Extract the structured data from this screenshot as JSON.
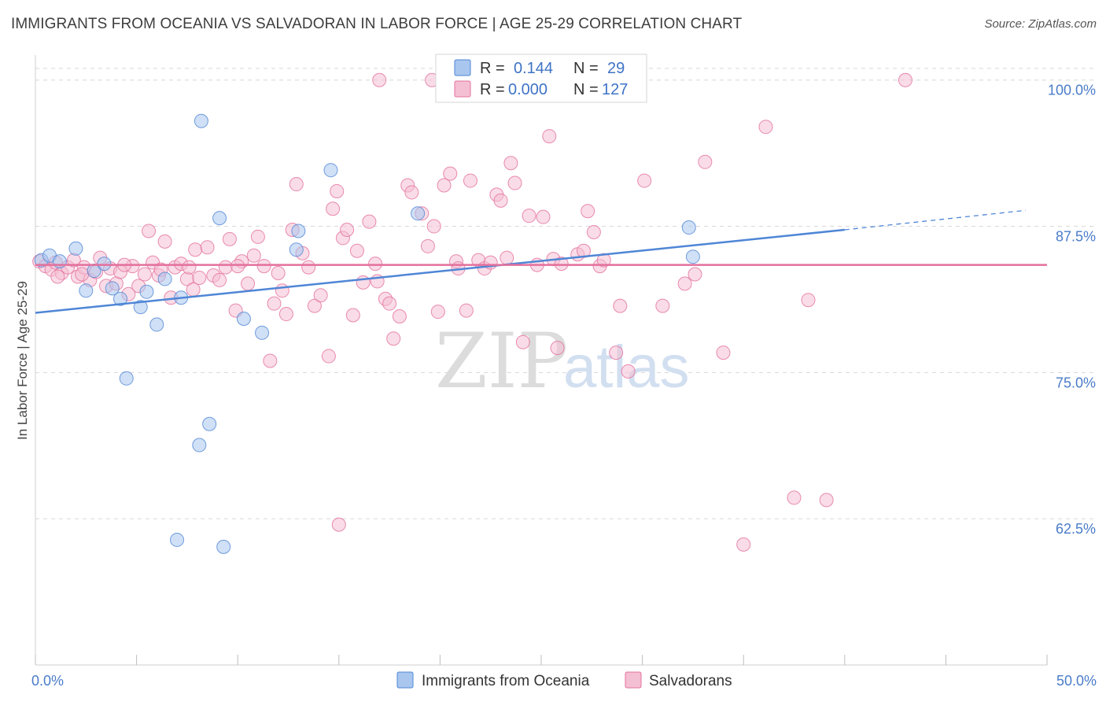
{
  "header": {
    "title": "IMMIGRANTS FROM OCEANIA VS SALVADORAN IN LABOR FORCE | AGE 25-29 CORRELATION CHART",
    "source": "Source: ZipAtlas.com"
  },
  "watermark": {
    "zip": "ZIP",
    "atlas": "atlas"
  },
  "colors": {
    "blue": "#4f86d6",
    "blue_fill": "#a9c6ee",
    "pink": "#e3709c",
    "pink_fill": "#f4bfd3",
    "tick_text": "#4a7cc9",
    "grid": "#d8d8d8"
  },
  "stats": {
    "blue": {
      "r_label": "R =",
      "r_value": "0.144",
      "n_label": "N =",
      "n_value": "29"
    },
    "pink": {
      "r_label": "R =",
      "r_value": "0.000",
      "n_label": "N =",
      "n_value": "127"
    }
  },
  "chart_data": {
    "type": "scatter",
    "xlabel": "",
    "ylabel": "In Labor Force | Age 25-29",
    "xlim": [
      0,
      50
    ],
    "ylim": [
      50,
      102
    ],
    "x_tick_labels": [
      {
        "value": 0,
        "label": "0.0%"
      },
      {
        "value": 50,
        "label": "50.0%"
      }
    ],
    "y_tick_labels": [
      {
        "value": 62.5,
        "label": "62.5%"
      },
      {
        "value": 75,
        "label": "75.0%"
      },
      {
        "value": 87.5,
        "label": "87.5%"
      },
      {
        "value": 100,
        "label": "100.0%"
      }
    ],
    "grid": "horizontal dashed",
    "legend": "bottom-center",
    "series": [
      {
        "name": "Immigrants from Oceania",
        "color": "#4f86d6",
        "trend": {
          "x": [
            0,
            40,
            50
          ],
          "y": [
            80.1,
            87.2,
            89.0
          ],
          "solid_until": 40
        },
        "points": [
          [
            0.3,
            84.6
          ],
          [
            0.7,
            85.0
          ],
          [
            1.2,
            84.5
          ],
          [
            2.0,
            85.6
          ],
          [
            2.5,
            82.0
          ],
          [
            2.9,
            83.7
          ],
          [
            3.4,
            84.3
          ],
          [
            3.8,
            82.2
          ],
          [
            4.2,
            81.3
          ],
          [
            4.5,
            74.5
          ],
          [
            5.2,
            80.6
          ],
          [
            5.5,
            81.9
          ],
          [
            6.0,
            79.1
          ],
          [
            6.4,
            83.0
          ],
          [
            7.0,
            60.7
          ],
          [
            7.2,
            81.4
          ],
          [
            8.1,
            68.8
          ],
          [
            8.2,
            96.5
          ],
          [
            8.6,
            70.6
          ],
          [
            9.1,
            88.2
          ],
          [
            9.3,
            60.1
          ],
          [
            10.3,
            79.6
          ],
          [
            11.2,
            78.4
          ],
          [
            12.9,
            85.5
          ],
          [
            13.0,
            87.1
          ],
          [
            14.6,
            92.3
          ],
          [
            18.9,
            88.6
          ],
          [
            32.5,
            84.9
          ],
          [
            32.3,
            87.4
          ]
        ]
      },
      {
        "name": "Salvadorans",
        "color": "#e3709c",
        "trend": {
          "x": [
            0,
            50
          ],
          "y": [
            84.2,
            84.2
          ],
          "solid_until": 50
        },
        "points": [
          [
            0.2,
            84.5
          ],
          [
            0.5,
            84.1
          ],
          [
            0.8,
            83.8
          ],
          [
            1.0,
            84.4
          ],
          [
            1.3,
            83.5
          ],
          [
            1.6,
            84.0
          ],
          [
            1.9,
            84.6
          ],
          [
            2.1,
            83.2
          ],
          [
            2.4,
            84.0
          ],
          [
            2.7,
            82.9
          ],
          [
            3.0,
            83.6
          ],
          [
            3.2,
            84.8
          ],
          [
            3.5,
            82.4
          ],
          [
            3.7,
            83.9
          ],
          [
            4.0,
            82.6
          ],
          [
            4.2,
            83.6
          ],
          [
            4.6,
            81.7
          ],
          [
            4.8,
            84.1
          ],
          [
            5.1,
            82.4
          ],
          [
            5.4,
            83.4
          ],
          [
            5.6,
            87.1
          ],
          [
            5.8,
            84.4
          ],
          [
            6.1,
            83.3
          ],
          [
            6.4,
            86.2
          ],
          [
            6.7,
            81.4
          ],
          [
            6.9,
            84.0
          ],
          [
            7.2,
            84.3
          ],
          [
            7.5,
            83.0
          ],
          [
            7.8,
            82.1
          ],
          [
            7.9,
            85.5
          ],
          [
            8.1,
            83.1
          ],
          [
            8.5,
            85.7
          ],
          [
            8.8,
            83.3
          ],
          [
            9.1,
            82.9
          ],
          [
            9.6,
            86.4
          ],
          [
            9.9,
            80.3
          ],
          [
            10.2,
            84.5
          ],
          [
            10.5,
            82.6
          ],
          [
            10.8,
            85.0
          ],
          [
            11.0,
            86.6
          ],
          [
            11.3,
            84.1
          ],
          [
            11.6,
            76.0
          ],
          [
            11.8,
            80.9
          ],
          [
            12.2,
            82.0
          ],
          [
            12.4,
            80.0
          ],
          [
            12.7,
            87.2
          ],
          [
            12.9,
            91.1
          ],
          [
            13.2,
            85.2
          ],
          [
            13.5,
            84.0
          ],
          [
            13.8,
            80.7
          ],
          [
            14.1,
            81.6
          ],
          [
            14.5,
            76.4
          ],
          [
            14.7,
            89.0
          ],
          [
            14.9,
            90.5
          ],
          [
            15.2,
            86.5
          ],
          [
            15.4,
            87.2
          ],
          [
            15.7,
            79.9
          ],
          [
            15.9,
            85.4
          ],
          [
            16.2,
            82.7
          ],
          [
            16.5,
            87.9
          ],
          [
            16.9,
            82.8
          ],
          [
            17.3,
            81.3
          ],
          [
            17.5,
            80.9
          ],
          [
            17.7,
            77.9
          ],
          [
            18.0,
            79.8
          ],
          [
            18.4,
            91.0
          ],
          [
            18.6,
            90.4
          ],
          [
            19.1,
            88.6
          ],
          [
            19.4,
            85.8
          ],
          [
            19.7,
            87.5
          ],
          [
            19.9,
            80.2
          ],
          [
            20.2,
            91.0
          ],
          [
            20.5,
            92.0
          ],
          [
            20.8,
            84.5
          ],
          [
            21.3,
            80.3
          ],
          [
            21.5,
            91.4
          ],
          [
            21.9,
            84.6
          ],
          [
            22.2,
            83.9
          ],
          [
            22.5,
            84.4
          ],
          [
            22.8,
            90.2
          ],
          [
            23.0,
            89.7
          ],
          [
            23.5,
            92.9
          ],
          [
            23.7,
            91.2
          ],
          [
            23.3,
            84.8
          ],
          [
            24.1,
            77.6
          ],
          [
            24.4,
            88.4
          ],
          [
            24.8,
            84.2
          ],
          [
            25.1,
            88.3
          ],
          [
            25.4,
            95.2
          ],
          [
            25.6,
            84.7
          ],
          [
            25.8,
            77.1
          ],
          [
            26.8,
            85.1
          ],
          [
            27.1,
            85.4
          ],
          [
            27.3,
            88.8
          ],
          [
            27.6,
            87.0
          ],
          [
            27.9,
            84.1
          ],
          [
            28.1,
            84.6
          ],
          [
            28.7,
            76.7
          ],
          [
            28.9,
            80.7
          ],
          [
            29.3,
            75.1
          ],
          [
            30.1,
            91.4
          ],
          [
            31.0,
            80.7
          ],
          [
            32.1,
            82.6
          ],
          [
            32.6,
            83.4
          ],
          [
            33.1,
            93.0
          ],
          [
            34.0,
            76.7
          ],
          [
            35.0,
            60.3
          ],
          [
            36.1,
            96.0
          ],
          [
            37.5,
            64.3
          ],
          [
            38.2,
            81.2
          ],
          [
            39.1,
            64.1
          ],
          [
            15.0,
            62.0
          ],
          [
            17.0,
            100.0
          ],
          [
            19.6,
            100.0
          ],
          [
            23.2,
            100.0
          ],
          [
            43.0,
            100.0
          ],
          [
            1.1,
            83.2
          ],
          [
            2.3,
            83.4
          ],
          [
            9.4,
            84.0
          ],
          [
            12.0,
            83.5
          ],
          [
            6.2,
            83.8
          ],
          [
            16.8,
            84.3
          ],
          [
            20.9,
            83.9
          ],
          [
            26.0,
            84.3
          ],
          [
            10.0,
            84.1
          ],
          [
            4.4,
            84.2
          ],
          [
            7.6,
            84.0
          ]
        ]
      }
    ]
  }
}
